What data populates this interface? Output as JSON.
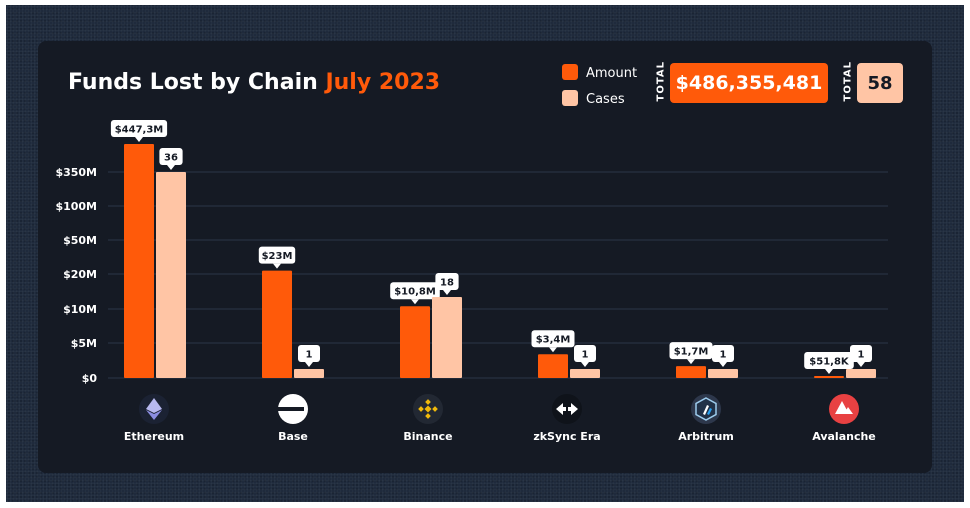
{
  "title": {
    "main": "Funds Lost by Chain",
    "highlight": "July 2023"
  },
  "legend": {
    "amount_label": "Amount",
    "cases_label": "Cases"
  },
  "totals": {
    "amount_total_label": "TOTAL",
    "amount_total": "$486,355,481",
    "cases_total_label": "TOTAL",
    "cases_total": "58"
  },
  "colors": {
    "amount": "#ff5a0a",
    "cases": "#ffc5a5",
    "background": "#151a24"
  },
  "chart_data": {
    "type": "bar",
    "title": "Funds Lost by Chain July 2023",
    "categories": [
      "Ethereum",
      "Base",
      "Binance",
      "zkSync Era",
      "Arbitrum",
      "Avalanche"
    ],
    "y_ticks": [
      "$0",
      "$5M",
      "$10M",
      "$20M",
      "$50M",
      "$100M",
      "$350M"
    ],
    "y_scale": "non-linear (custom tick spacing)",
    "series": [
      {
        "name": "Amount",
        "values": [
          447300000,
          23000000,
          10800000,
          3400000,
          1700000,
          51800
        ],
        "labels": [
          "$447,3M",
          "$23M",
          "$10,8M",
          "$3,4M",
          "$1,7M",
          "$51,8K"
        ]
      },
      {
        "name": "Cases",
        "values": [
          36,
          1,
          18,
          1,
          1,
          1
        ],
        "labels": [
          "36",
          "1",
          "18",
          "1",
          "1",
          "1"
        ]
      }
    ],
    "icons": [
      "ethereum-icon",
      "base-icon",
      "binance-icon",
      "zksync-era-icon",
      "arbitrum-icon",
      "avalanche-icon"
    ]
  }
}
